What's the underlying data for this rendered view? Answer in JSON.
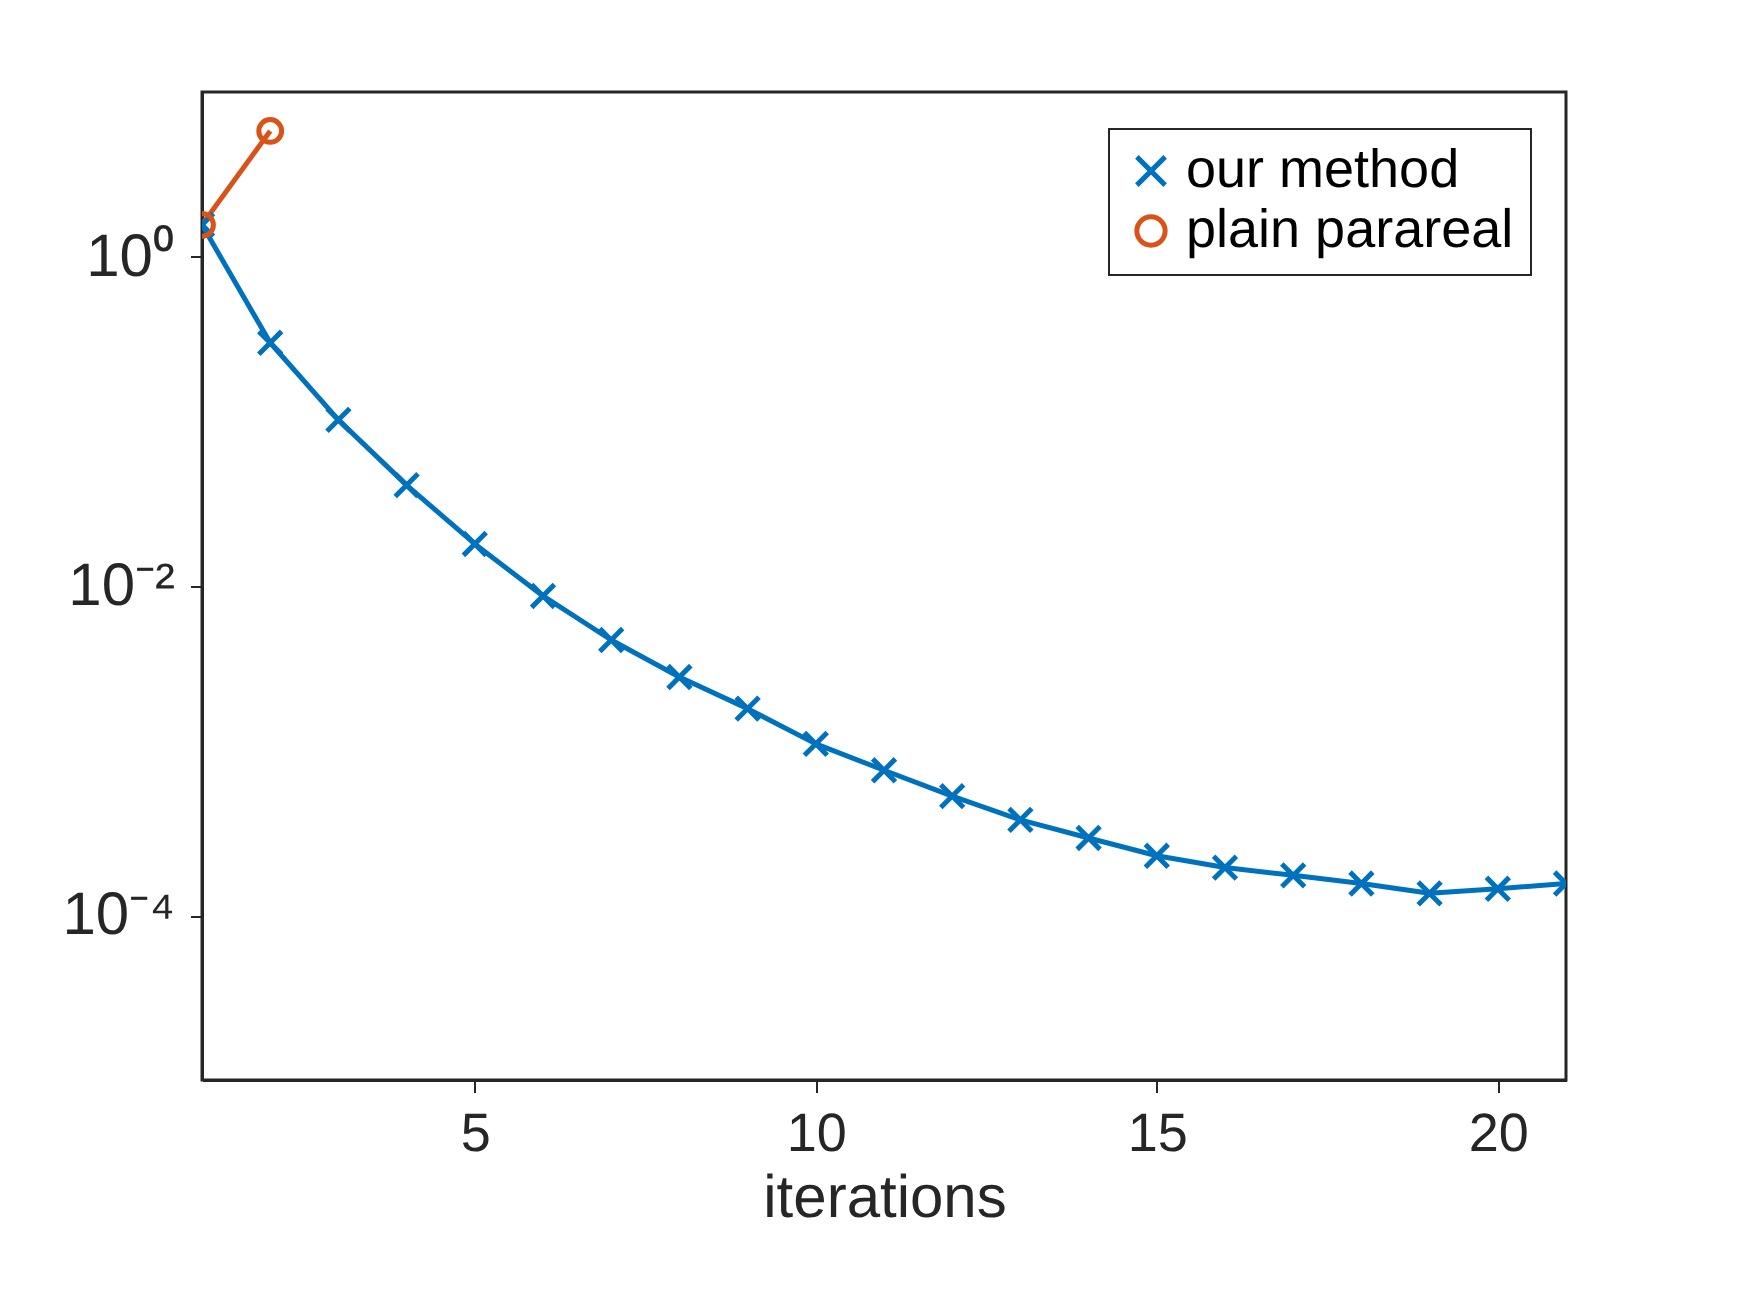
{
  "chart_data": {
    "type": "line",
    "xlabel": "iterations",
    "xlim": [
      1,
      21
    ],
    "xticks": [
      5,
      10,
      15,
      20
    ],
    "ylim": [
      1e-05,
      10
    ],
    "yticks": [
      {
        "value": 0.0001,
        "label": "10⁻⁴"
      },
      {
        "value": 0.01,
        "label": "10⁻²"
      },
      {
        "value": 1,
        "label": "10⁰"
      }
    ],
    "log": "y",
    "grid": false,
    "legend": "top right",
    "line_style": "solid",
    "series": [
      {
        "name": "our method",
        "color": "#0072bd",
        "marker": "cross",
        "x": [
          1,
          2,
          3,
          4,
          5,
          6,
          7,
          8,
          9,
          10,
          11,
          12,
          13,
          14,
          15,
          16,
          17,
          18,
          19,
          20,
          21
        ],
        "values": [
          1.56,
          0.3,
          0.102,
          0.041,
          0.018,
          0.0087,
          0.0047,
          0.0028,
          0.0018,
          0.0011,
          0.00076,
          0.00053,
          0.00038,
          0.000295,
          0.00023,
          0.000195,
          0.000175,
          0.000156,
          0.000136,
          0.000145,
          0.000156
        ]
      },
      {
        "name": "plain parareal",
        "color": "#d95319",
        "marker": "circle",
        "x": [
          1,
          2
        ],
        "values": [
          1.56,
          5.8
        ]
      }
    ]
  }
}
